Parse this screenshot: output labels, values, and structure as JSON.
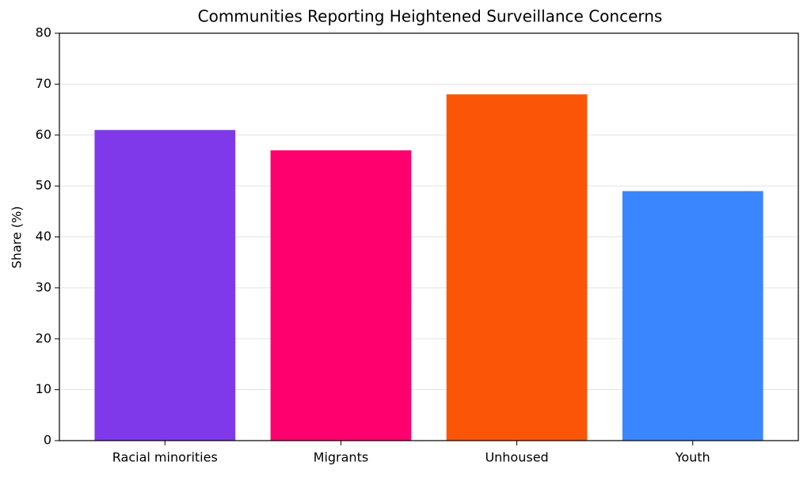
{
  "chart_data": {
    "type": "bar",
    "title": "Communities Reporting Heightened Surveillance Concerns",
    "ylabel": "Share (%)",
    "categories": [
      "Racial minorities",
      "Migrants",
      "Unhoused",
      "Youth"
    ],
    "values": [
      61,
      57,
      68,
      49
    ],
    "colors": [
      "#7f39eb",
      "#ff006e",
      "#fb5607",
      "#3a86ff"
    ],
    "ylim": [
      0,
      80
    ],
    "yticks": [
      0,
      10,
      20,
      30,
      40,
      50,
      60,
      70,
      80
    ],
    "grid": true
  }
}
